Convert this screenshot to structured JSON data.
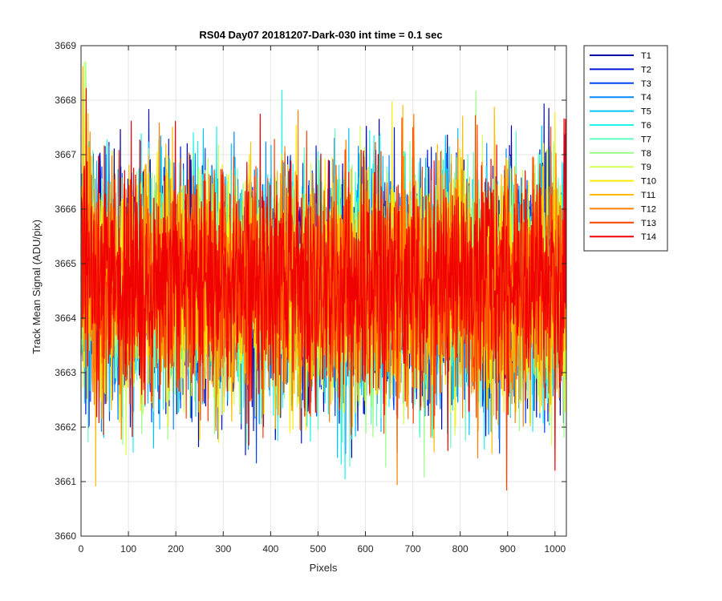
{
  "chart_data": {
    "type": "line",
    "title": "RS04 Day07 20181207-Dark-030 int time = 0.1 sec",
    "xlabel": "Pixels",
    "ylabel": "Track Mean Signal (ADU/pix)",
    "xlim": [
      0,
      1024
    ],
    "ylim": [
      3660,
      3669
    ],
    "xticks": [
      "0",
      "100",
      "200",
      "300",
      "400",
      "500",
      "600",
      "700",
      "800",
      "900",
      "1000"
    ],
    "yticks": [
      "3660",
      "3661",
      "3662",
      "3663",
      "3664",
      "3665",
      "3666",
      "3667",
      "3668",
      "3669"
    ],
    "grid": true,
    "legend_position": "outside top-right",
    "noise_description_values": {
      "center": 3664.6,
      "typical_range": [
        3662,
        3667.5
      ],
      "minimum_observed": 3660.8,
      "maximum_observed": 3668.7
    },
    "series": [
      {
        "name": "T1",
        "color": "#0000a8",
        "seed": 11
      },
      {
        "name": "T2",
        "color": "#0014d8",
        "seed": 23
      },
      {
        "name": "T3",
        "color": "#0044f0",
        "seed": 37
      },
      {
        "name": "T4",
        "color": "#0088ff",
        "seed": 41
      },
      {
        "name": "T5",
        "color": "#00c4ff",
        "seed": 53
      },
      {
        "name": "T6",
        "color": "#1cf4ee",
        "seed": 67
      },
      {
        "name": "T7",
        "color": "#5cffc0",
        "seed": 71
      },
      {
        "name": "T8",
        "color": "#98ff84",
        "seed": 83
      },
      {
        "name": "T9",
        "color": "#d0ff50",
        "seed": 97
      },
      {
        "name": "T10",
        "color": "#ffec00",
        "seed": 101
      },
      {
        "name": "T11",
        "color": "#ffbc00",
        "seed": 113
      },
      {
        "name": "T12",
        "color": "#ff8000",
        "seed": 127
      },
      {
        "name": "T13",
        "color": "#ff4000",
        "seed": 131
      },
      {
        "name": "T14",
        "color": "#f00000",
        "seed": 149
      }
    ],
    "points_per_series": 1024
  }
}
